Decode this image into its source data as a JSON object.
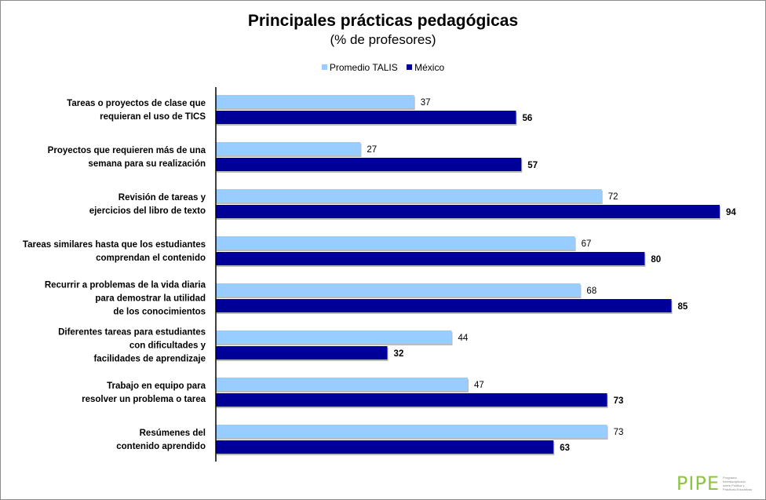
{
  "chart_data": {
    "type": "bar",
    "orientation": "horizontal",
    "title": "Principales prácticas pedagógicas",
    "subtitle": "(% de profesores)",
    "xlabel": "",
    "ylabel": "",
    "xlim": [
      0,
      94
    ],
    "grid": false,
    "legend_position": "top-center",
    "categories": [
      [
        "Tareas o proyectos de clase que",
        "requieran el uso de TICS"
      ],
      [
        "Proyectos que requieren más de una",
        "semana para su realización"
      ],
      [
        "Revisión de tareas y",
        "ejercicios del libro de texto"
      ],
      [
        "Tareas similares hasta que los estudiantes",
        "comprendan el contenido"
      ],
      [
        "Recurrir a problemas de la vida diaria",
        "para demostrar la utilidad",
        "de los conocimientos"
      ],
      [
        "Diferentes tareas para estudiantes",
        "con dificultades y",
        "facilidades de aprendizaje"
      ],
      [
        "Trabajo en equipo para",
        "resolver un problema o tarea"
      ],
      [
        "Resúmenes del",
        "contenido aprendido"
      ]
    ],
    "series": [
      {
        "name": "Promedio TALIS",
        "color": "#99ccff",
        "values": [
          37,
          27,
          72,
          67,
          68,
          44,
          47,
          73
        ]
      },
      {
        "name": "México",
        "color": "#000099",
        "values": [
          56,
          57,
          94,
          80,
          85,
          32,
          73,
          63
        ]
      }
    ]
  },
  "logo": {
    "mark": "PIPE",
    "text": "Programa Interdisciplinario sobre Política y Prácticas Educativas"
  }
}
